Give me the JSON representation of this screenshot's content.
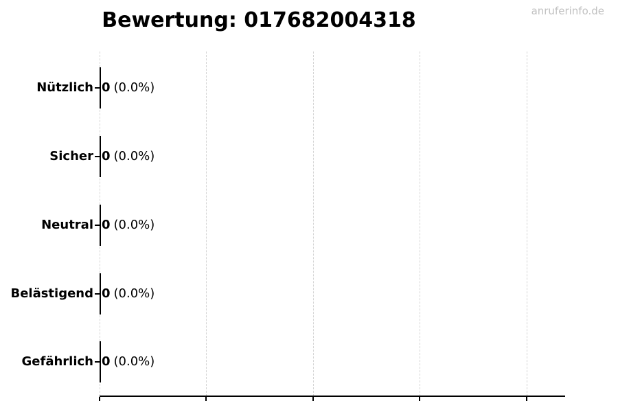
{
  "title": "Bewertung: 017682004318",
  "watermark": "anruferinfo.de",
  "colors": {
    "title": "#000000",
    "watermark": "#c1c1c1",
    "gridline": "#d4d4d4",
    "axis": "#000000",
    "bar_edge": "#000000"
  },
  "chart_data": {
    "type": "bar",
    "orientation": "horizontal",
    "title": "Bewertung: 017682004318",
    "categories": [
      "Nützlich",
      "Sicher",
      "Neutral",
      "Belästigend",
      "Gefährlich"
    ],
    "values": [
      0,
      0,
      0,
      0,
      0
    ],
    "value_labels": [
      "0 (0.0%)",
      "0 (0.0%)",
      "0 (0.0%)",
      "0 (0.0%)",
      "0 (0.0%)"
    ],
    "xlabel": "",
    "ylabel": "",
    "x_tick_labels": [],
    "gridlines": 5,
    "grid": "vertical-dashed",
    "legend": "none"
  },
  "rows": [
    {
      "label": "Nützlich",
      "count": "0",
      "pct": "(0.0%)"
    },
    {
      "label": "Sicher",
      "count": "0",
      "pct": "(0.0%)"
    },
    {
      "label": "Neutral",
      "count": "0",
      "pct": "(0.0%)"
    },
    {
      "label": "Belästigend",
      "count": "0",
      "pct": "(0.0%)"
    },
    {
      "label": "Gefährlich",
      "count": "0",
      "pct": "(0.0%)"
    }
  ]
}
